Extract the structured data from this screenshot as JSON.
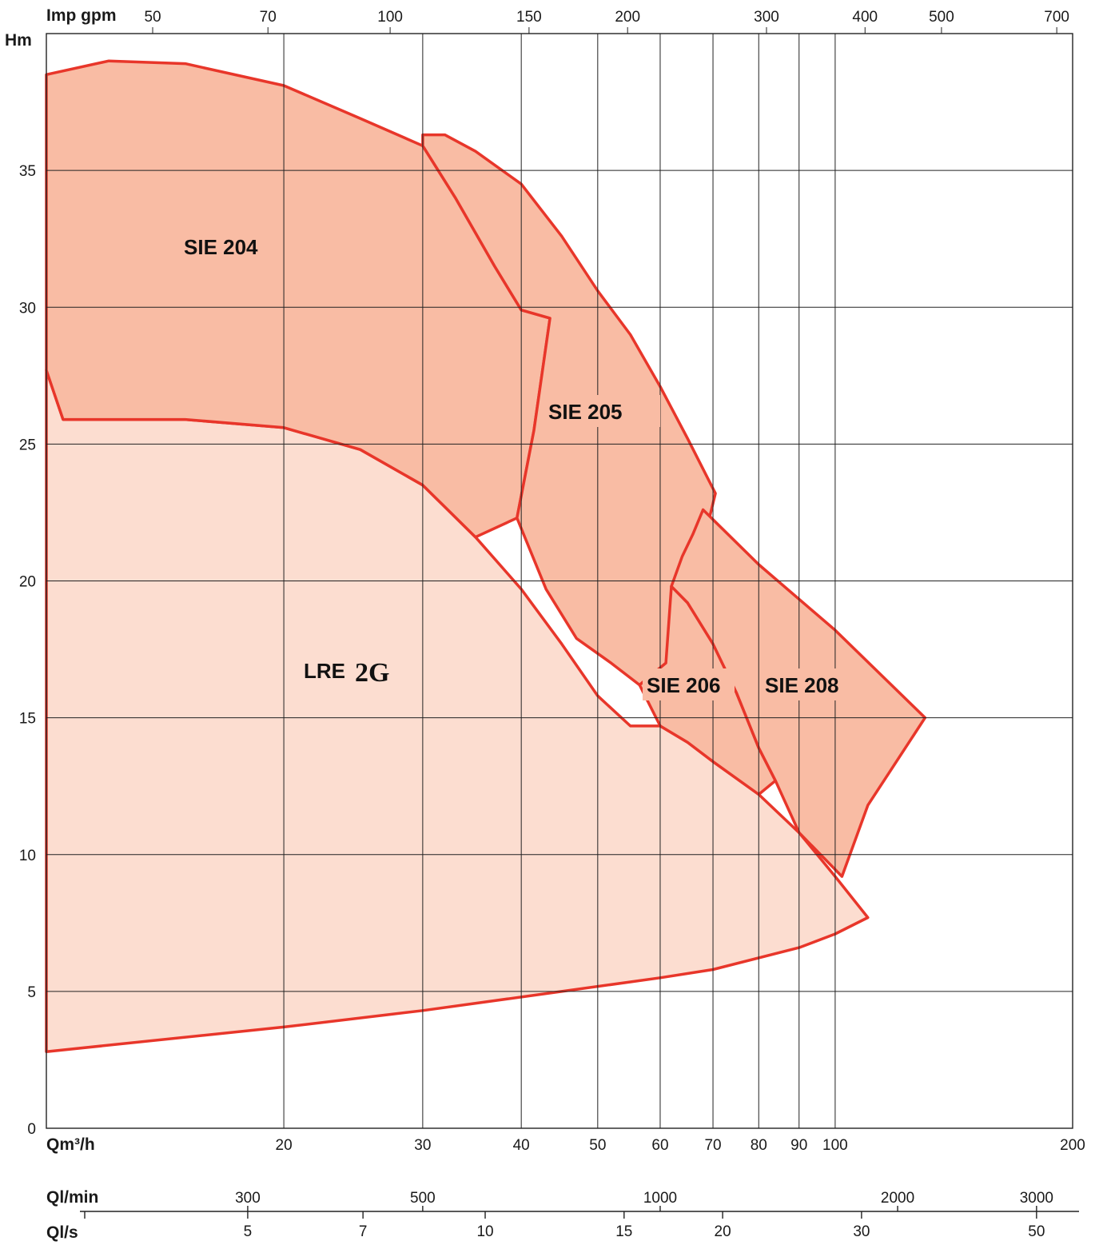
{
  "chart_data": {
    "type": "area",
    "y_axis": {
      "label": "Hm",
      "range": [
        0,
        40
      ],
      "ticks": [
        0,
        5,
        10,
        15,
        20,
        25,
        30,
        35
      ]
    },
    "x_axis_bottom": {
      "label": "Qm³/h",
      "scale": "log",
      "range": [
        10,
        200
      ],
      "ticks": [
        20,
        30,
        40,
        50,
        60,
        70,
        80,
        90,
        100,
        200
      ]
    },
    "x_axis_top": {
      "label": "Imp gpm",
      "ticks": [
        50,
        70,
        100,
        150,
        200,
        300,
        400,
        500,
        700
      ]
    },
    "extra_axes": [
      {
        "label": "Ql/min",
        "ticks": [
          300,
          500,
          1000,
          2000,
          3000
        ]
      },
      {
        "label": "Ql/s",
        "ticks": [
          5,
          7,
          10,
          15,
          20,
          30,
          50
        ]
      }
    ],
    "series": [
      {
        "name": "LRE",
        "logo": "2G",
        "fill": "#fcddd0",
        "points": [
          [
            10,
            27.7
          ],
          [
            10.5,
            25.9
          ],
          [
            15,
            25.9
          ],
          [
            20,
            25.6
          ],
          [
            25,
            24.8
          ],
          [
            30,
            23.5
          ],
          [
            35,
            21.6
          ],
          [
            40,
            19.7
          ],
          [
            45,
            17.7
          ],
          [
            50,
            15.8
          ],
          [
            55,
            14.7
          ],
          [
            60,
            14.7
          ],
          [
            65,
            14.1
          ],
          [
            70,
            13.4
          ],
          [
            80,
            12.2
          ],
          [
            90,
            10.8
          ],
          [
            100,
            9.2
          ],
          [
            110,
            7.7
          ],
          [
            100,
            7.1
          ],
          [
            90,
            6.6
          ],
          [
            70,
            5.8
          ],
          [
            60,
            5.5
          ],
          [
            45,
            5.0
          ],
          [
            30,
            4.3
          ],
          [
            20,
            3.7
          ],
          [
            10,
            2.8
          ]
        ]
      },
      {
        "name": "SIE 204",
        "fill": "#f9bca4",
        "points": [
          [
            10,
            38.5
          ],
          [
            12,
            39.0
          ],
          [
            15,
            38.9
          ],
          [
            20,
            38.1
          ],
          [
            25,
            36.9
          ],
          [
            30,
            35.9
          ],
          [
            33,
            34.0
          ],
          [
            37,
            31.5
          ],
          [
            40,
            29.9
          ],
          [
            43.5,
            29.6
          ],
          [
            41.5,
            25.5
          ],
          [
            39.5,
            22.3
          ],
          [
            35,
            21.6
          ],
          [
            30,
            23.5
          ],
          [
            25,
            24.8
          ],
          [
            20,
            25.6
          ],
          [
            15,
            25.9
          ],
          [
            10.5,
            25.9
          ],
          [
            10,
            27.7
          ]
        ]
      },
      {
        "name": "SIE 205",
        "fill": "#f9bca4",
        "points": [
          [
            30,
            36.3
          ],
          [
            32,
            36.3
          ],
          [
            35,
            35.7
          ],
          [
            40,
            34.5
          ],
          [
            45,
            32.6
          ],
          [
            50,
            30.6
          ],
          [
            55,
            29.0
          ],
          [
            60,
            27.1
          ],
          [
            65,
            25.2
          ],
          [
            70.5,
            23.2
          ],
          [
            67,
            20.6
          ],
          [
            64,
            18.4
          ],
          [
            61,
            17.0
          ],
          [
            56.5,
            16.2
          ],
          [
            52,
            17.0
          ],
          [
            47,
            17.9
          ],
          [
            43,
            19.7
          ],
          [
            39.5,
            22.3
          ],
          [
            41.5,
            25.5
          ],
          [
            43.5,
            29.6
          ],
          [
            40,
            29.9
          ],
          [
            37,
            31.5
          ],
          [
            33,
            34.0
          ],
          [
            30,
            35.9
          ]
        ]
      },
      {
        "name": "SIE 206",
        "fill": "#f9bca4",
        "points": [
          [
            62,
            19.8
          ],
          [
            65,
            19.2
          ],
          [
            70,
            17.7
          ],
          [
            75,
            15.9
          ],
          [
            80,
            13.9
          ],
          [
            84,
            12.7
          ],
          [
            80,
            12.2
          ],
          [
            70,
            13.4
          ],
          [
            65,
            14.1
          ],
          [
            60,
            14.7
          ],
          [
            56.5,
            16.2
          ],
          [
            61,
            17.0
          ]
        ]
      },
      {
        "name": "SIE 208",
        "fill": "#f9bca4",
        "points": [
          [
            68,
            22.6
          ],
          [
            80,
            20.6
          ],
          [
            100,
            18.2
          ],
          [
            130,
            15.0
          ],
          [
            110,
            11.8
          ],
          [
            102,
            9.2
          ],
          [
            90,
            10.8
          ],
          [
            84,
            12.7
          ],
          [
            80,
            13.9
          ],
          [
            75,
            15.9
          ],
          [
            70,
            17.7
          ],
          [
            65,
            19.2
          ],
          [
            62,
            19.8
          ],
          [
            64,
            20.9
          ],
          [
            66,
            21.7
          ]
        ]
      }
    ],
    "labels": [
      "SIE 204",
      "SIE 205",
      "SIE 206",
      "SIE 208",
      "LRE"
    ],
    "grid": true,
    "outline_color": "#e8362a"
  }
}
